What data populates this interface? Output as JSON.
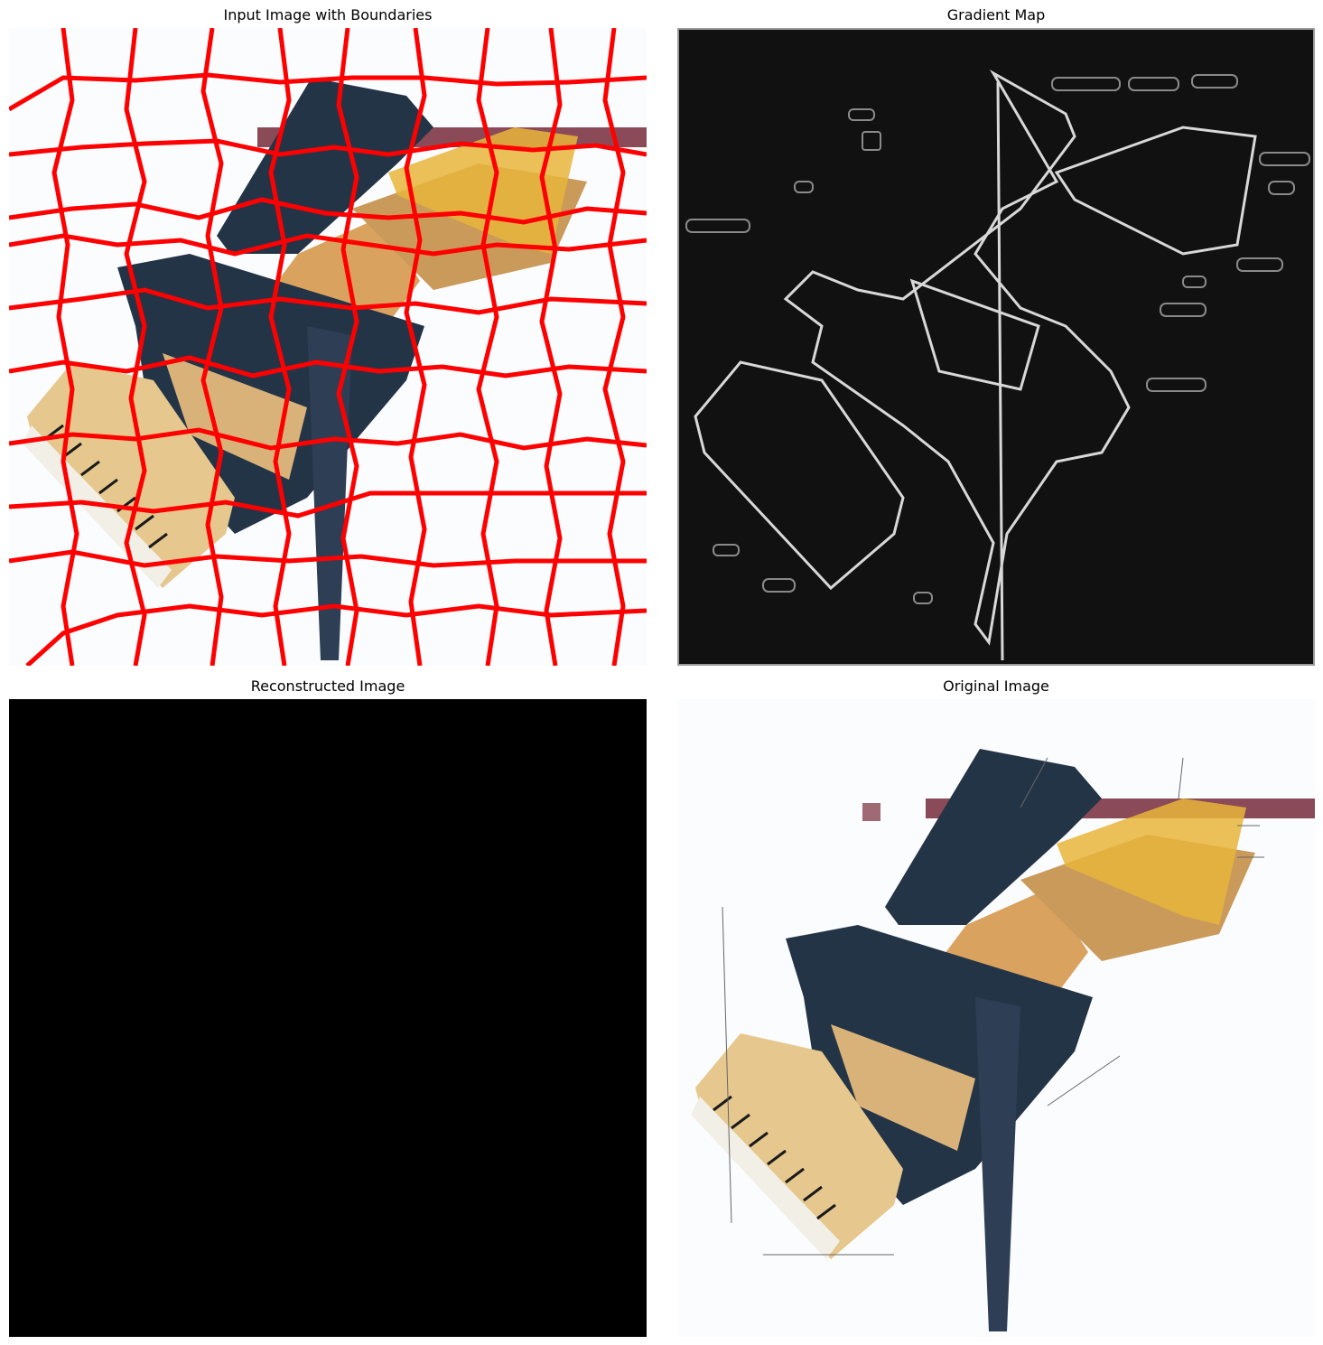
{
  "panels": {
    "boundaries": {
      "title": "Input Image with Boundaries",
      "boundary_color": "#ff0000"
    },
    "gradient": {
      "title": "Gradient Map",
      "background_color": "#111111",
      "edge_color": "#d8d8d8"
    },
    "reconstructed": {
      "title": "Reconstructed Image",
      "fill_color": "#000000"
    },
    "original": {
      "title": "Original Image"
    }
  },
  "colors": {
    "piano_body": "#243447",
    "piano_wood": "#d9a25f",
    "piano_gold": "#e8b53b",
    "piano_lid_interior": "#c99a5a",
    "keys_white": "#f2efe6",
    "keys_black": "#1a1a1a",
    "banner": "#8b4a57"
  }
}
